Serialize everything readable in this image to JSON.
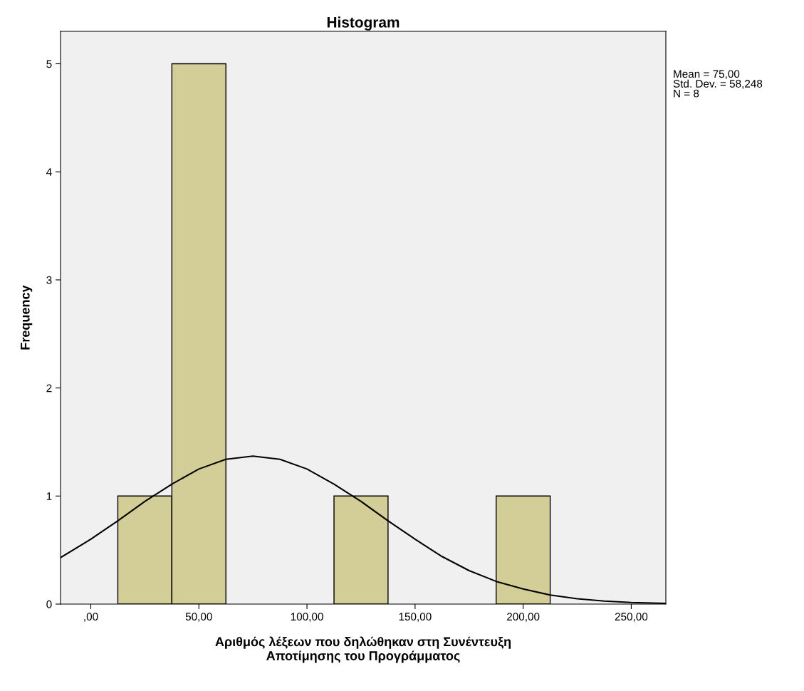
{
  "chart_data": {
    "type": "histogram",
    "title": "Histogram",
    "xlabel": "Αριθμός λέξεων που δηλώθηκαν στη Συνέντευξη\nΑποτίμησης του Προγράμματος",
    "ylabel": "Frequency",
    "bins": [
      12.5,
      37.5,
      62.5,
      87.5,
      112.5,
      137.5,
      162.5,
      187.5,
      212.5
    ],
    "values": [
      1,
      5,
      0,
      0,
      1,
      0,
      0,
      1
    ],
    "color": "#d3ce97",
    "series": [
      {
        "type": "line",
        "color": "#000000",
        "x": [
          -14,
          0,
          12.5,
          25,
          37.5,
          50,
          62.5,
          75,
          87.5,
          100,
          112.5,
          125,
          137.5,
          150,
          162.5,
          175,
          187.5,
          200,
          212.5,
          225,
          237.5,
          250,
          266
        ],
        "values": [
          0.43,
          0.6,
          0.77,
          0.95,
          1.11,
          1.25,
          1.34,
          1.37,
          1.34,
          1.25,
          1.11,
          0.95,
          0.77,
          0.6,
          0.44,
          0.31,
          0.21,
          0.14,
          0.084,
          0.05,
          0.028,
          0.015,
          0.006
        ]
      }
    ],
    "xlim": [
      -14,
      266
    ],
    "ylim": [
      0,
      5.3
    ],
    "xticks": [
      {
        "value": 0,
        "label": ",00"
      },
      {
        "value": 50,
        "label": "50,00"
      },
      {
        "value": 100,
        "label": "100,00"
      },
      {
        "value": 150,
        "label": "150,00"
      },
      {
        "value": 200,
        "label": "200,00"
      },
      {
        "value": 250,
        "label": "250,00"
      }
    ],
    "yticks": [
      0,
      1,
      2,
      3,
      4,
      5
    ],
    "grid": false,
    "legend": false,
    "annotations": [
      "Mean = 75,00\nStd. Dev. = 58,248\nN = 8"
    ]
  }
}
